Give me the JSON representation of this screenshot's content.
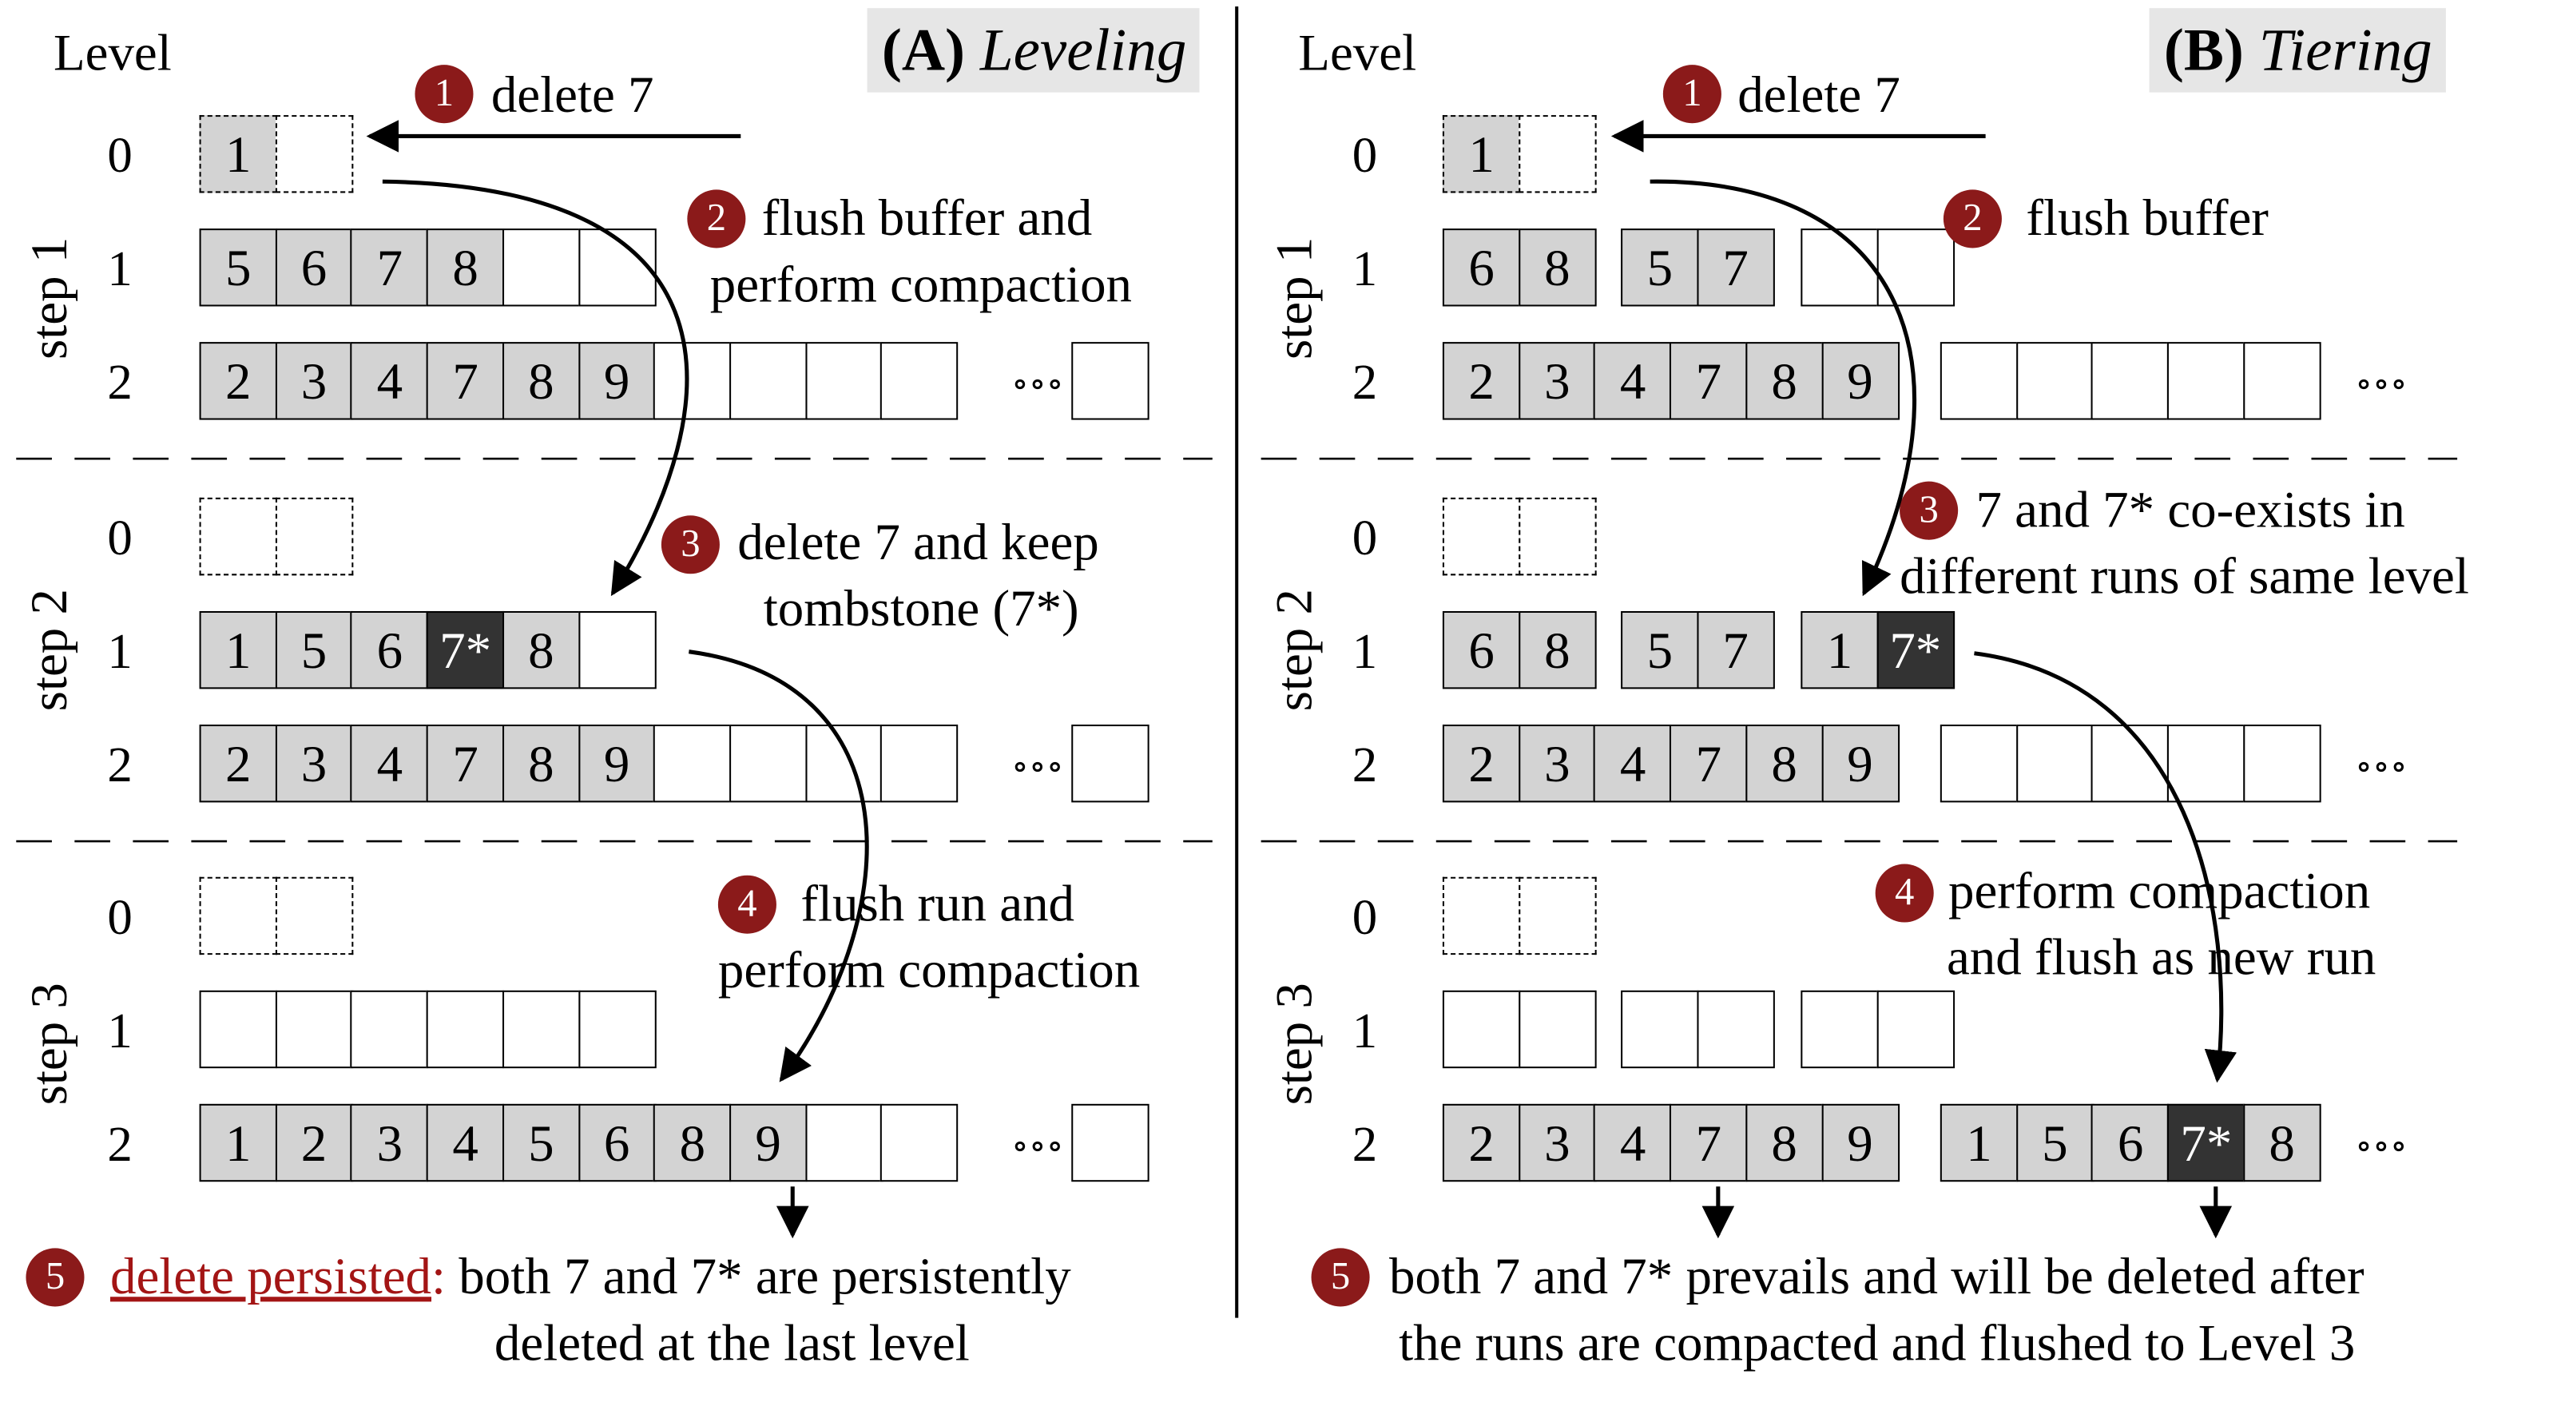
{
  "panels": [
    {
      "id": "A",
      "header_letter": "(A)",
      "header_title": "Leveling",
      "level_header": "Level",
      "steps": [
        {
          "label": "step 1",
          "levels": [
            {
              "num": "0",
              "runs": [
                [
                  "1",
                  ""
                ]
              ]
            },
            {
              "num": "1",
              "runs": [
                [
                  "5",
                  "6",
                  "7",
                  "8",
                  "",
                  ""
                ]
              ]
            },
            {
              "num": "2",
              "runs": [
                [
                  "2",
                  "3",
                  "4",
                  "7",
                  "8",
                  "9",
                  "",
                  "",
                  "",
                  ""
                ]
              ],
              "ellipsis": "∘∘∘",
              "tail_cell": ""
            }
          ]
        },
        {
          "label": "step 2",
          "levels": [
            {
              "num": "0",
              "runs": [
                [
                  "",
                  ""
                ]
              ]
            },
            {
              "num": "1",
              "runs": [
                [
                  "1",
                  "5",
                  "6",
                  "7*",
                  "8",
                  ""
                ]
              ]
            },
            {
              "num": "2",
              "runs": [
                [
                  "2",
                  "3",
                  "4",
                  "7",
                  "8",
                  "9",
                  "",
                  "",
                  "",
                  ""
                ]
              ],
              "ellipsis": "∘∘∘",
              "tail_cell": ""
            }
          ]
        },
        {
          "label": "step 3",
          "levels": [
            {
              "num": "0",
              "runs": [
                [
                  "",
                  ""
                ]
              ]
            },
            {
              "num": "1",
              "runs": [
                [
                  "",
                  "",
                  "",
                  "",
                  "",
                  ""
                ]
              ]
            },
            {
              "num": "2",
              "runs": [
                [
                  "1",
                  "2",
                  "3",
                  "4",
                  "5",
                  "6",
                  "8",
                  "9",
                  "",
                  ""
                ]
              ],
              "ellipsis": "∘∘∘",
              "tail_cell": ""
            }
          ]
        }
      ],
      "annotations": [
        {
          "num": "1",
          "lines": [
            "delete 7"
          ]
        },
        {
          "num": "2",
          "lines": [
            "flush buffer and",
            "perform compaction"
          ]
        },
        {
          "num": "3",
          "lines": [
            "delete 7 and keep",
            "tombstone (7*)"
          ]
        },
        {
          "num": "4",
          "lines": [
            "flush run and",
            "perform compaction"
          ]
        },
        {
          "num": "5",
          "highlight": "delete persisted",
          "colon": ":",
          "lines": [
            "both 7 and 7* are persistently",
            "deleted at the last level"
          ]
        }
      ]
    },
    {
      "id": "B",
      "header_letter": "(B)",
      "header_title": "Tiering",
      "level_header": "Level",
      "steps": [
        {
          "label": "step 1",
          "levels": [
            {
              "num": "0",
              "runs": [
                [
                  "1",
                  ""
                ]
              ]
            },
            {
              "num": "1",
              "runs": [
                [
                  "6",
                  "8"
                ],
                [
                  "5",
                  "7"
                ],
                [
                  "",
                  ""
                ]
              ]
            },
            {
              "num": "2",
              "runs": [
                [
                  "2",
                  "3",
                  "4",
                  "7",
                  "8",
                  "9"
                ],
                [
                  "",
                  "",
                  "",
                  "",
                  ""
                ]
              ],
              "ellipsis": "∘∘∘"
            }
          ]
        },
        {
          "label": "step 2",
          "levels": [
            {
              "num": "0",
              "runs": [
                [
                  "",
                  ""
                ]
              ]
            },
            {
              "num": "1",
              "runs": [
                [
                  "6",
                  "8"
                ],
                [
                  "5",
                  "7"
                ],
                [
                  "1",
                  "7*"
                ]
              ]
            },
            {
              "num": "2",
              "runs": [
                [
                  "2",
                  "3",
                  "4",
                  "7",
                  "8",
                  "9"
                ],
                [
                  "",
                  "",
                  "",
                  "",
                  ""
                ]
              ],
              "ellipsis": "∘∘∘"
            }
          ]
        },
        {
          "label": "step 3",
          "levels": [
            {
              "num": "0",
              "runs": [
                [
                  "",
                  ""
                ]
              ]
            },
            {
              "num": "1",
              "runs": [
                [
                  "",
                  ""
                ],
                [
                  "",
                  ""
                ],
                [
                  "",
                  ""
                ]
              ]
            },
            {
              "num": "2",
              "runs": [
                [
                  "2",
                  "3",
                  "4",
                  "7",
                  "8",
                  "9"
                ],
                [
                  "1",
                  "5",
                  "6",
                  "7*",
                  "8"
                ]
              ],
              "ellipsis": "∘∘∘"
            }
          ]
        }
      ],
      "annotations": [
        {
          "num": "1",
          "lines": [
            "delete 7"
          ]
        },
        {
          "num": "2",
          "lines": [
            "flush buffer"
          ]
        },
        {
          "num": "3",
          "lines": [
            "7 and 7* co-exists in",
            "different runs of same level"
          ]
        },
        {
          "num": "4",
          "lines": [
            "perform compaction",
            "and flush as new run"
          ]
        },
        {
          "num": "5",
          "lines": [
            "both 7 and 7* prevails and will be deleted after",
            "the runs are compacted and flushed to Level 3"
          ]
        }
      ]
    }
  ]
}
